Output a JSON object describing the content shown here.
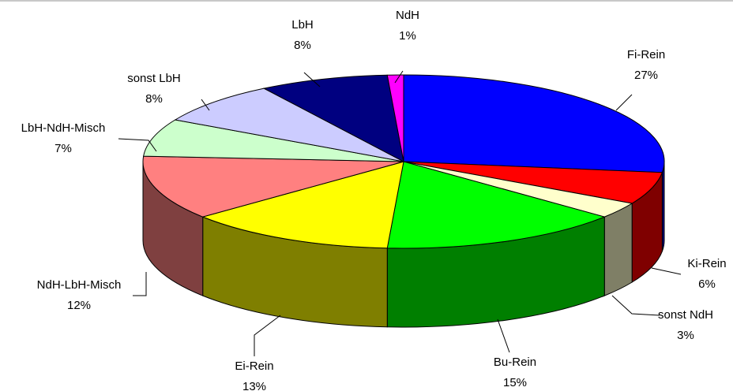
{
  "chart_data": {
    "type": "pie3d",
    "categories": [
      "Fi-Rein",
      "Ki-Rein",
      "sonst NdH",
      "Bu-Rein",
      "Ei-Rein",
      "NdH-LbH-Misch",
      "LbH-NdH-Misch",
      "sonst LbH",
      "LbH",
      "NdH"
    ],
    "values": [
      27,
      6,
      3,
      15,
      13,
      12,
      7,
      8,
      8,
      1
    ],
    "value_labels": [
      "27%",
      "6%",
      "3%",
      "15%",
      "13%",
      "12%",
      "7%",
      "8%",
      "8%",
      "1%"
    ],
    "colors": [
      "#0000ff",
      "#ff0000",
      "#ffffcc",
      "#00ff00",
      "#ffff00",
      "#ff8080",
      "#ccffcc",
      "#ccccff",
      "#000080",
      "#ff00ff"
    ]
  }
}
